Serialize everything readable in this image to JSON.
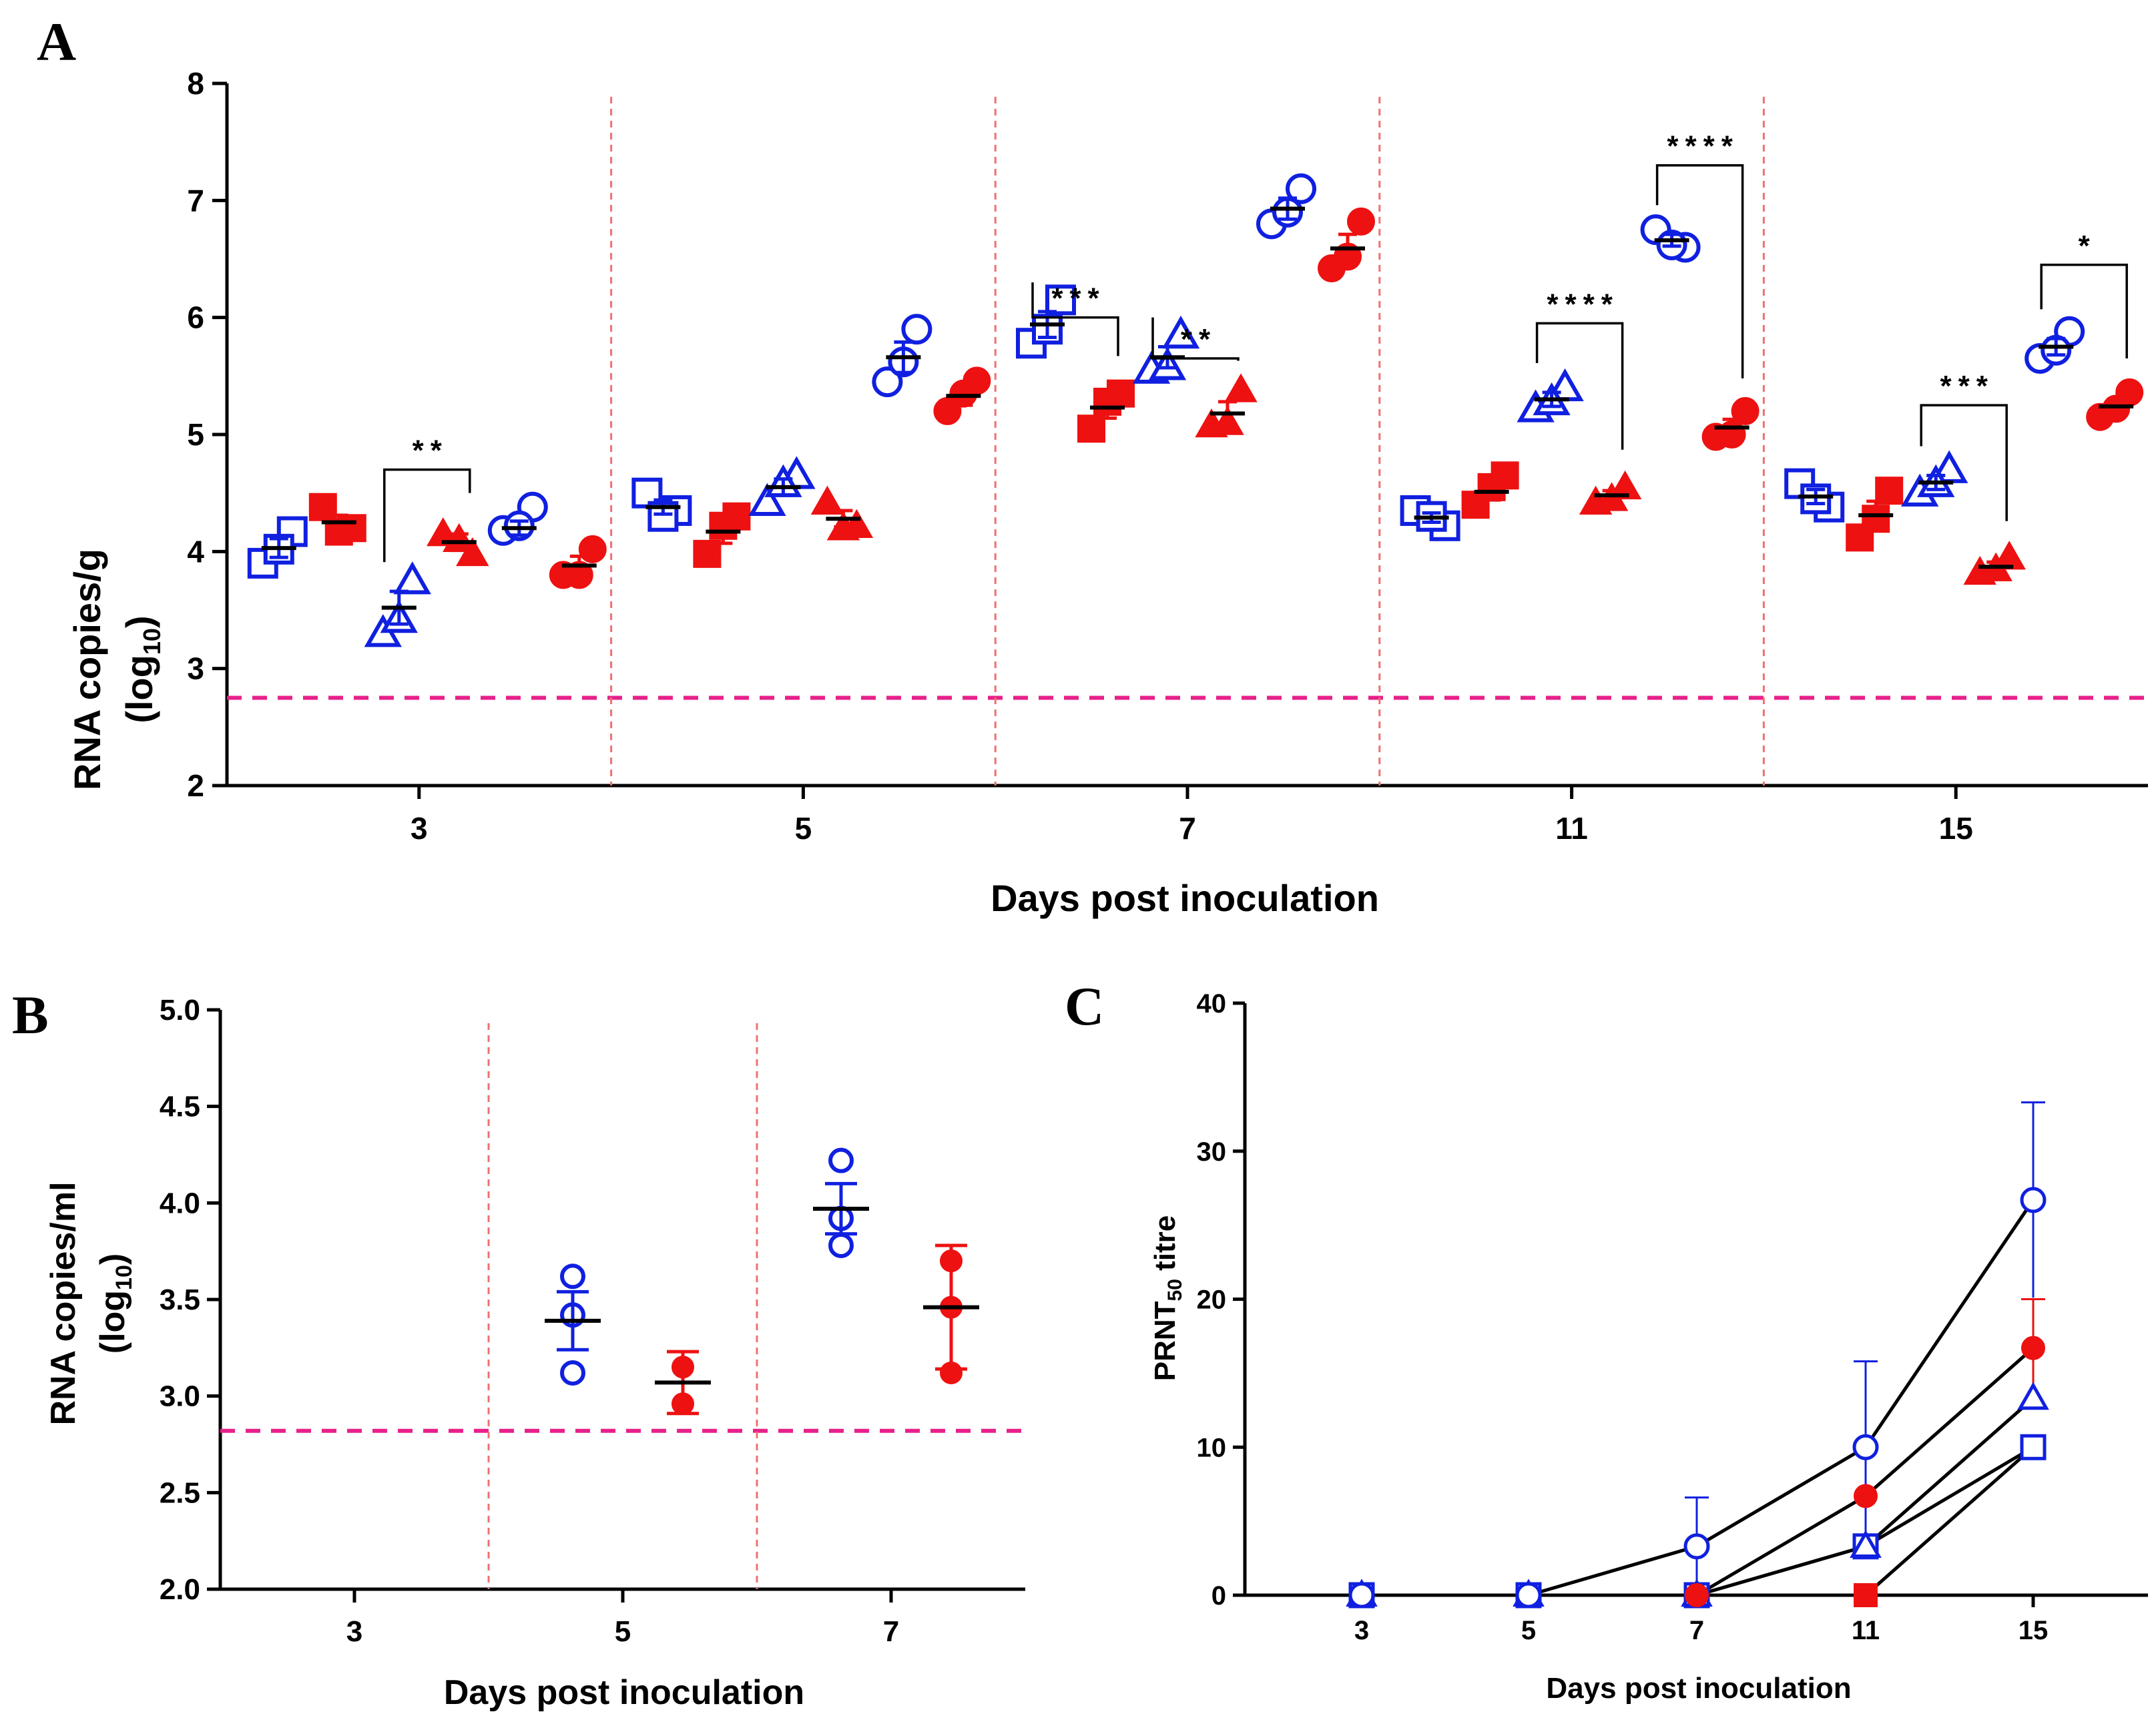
{
  "panels": {
    "a": "A",
    "b": "B",
    "c": "C"
  },
  "colors": {
    "blue": "#1020e0",
    "red": "#ee1111",
    "lod": "#e8208a",
    "divider": "#f07070",
    "black": "#000000"
  },
  "chart_data": [
    {
      "panel": "A",
      "type": "scatter",
      "xlabel": "Days post inoculation",
      "ylabel_main": "RNA copies/g",
      "ylabel_unit": "(log",
      "ylabel_sub": "10",
      "ylabel_close": ")",
      "ylim": [
        2,
        8
      ],
      "yticks": [
        "2",
        "3",
        "4",
        "5",
        "6",
        "7",
        "8"
      ],
      "detection_limit": 2.75,
      "groups": [
        "3",
        "5",
        "7",
        "11",
        "15"
      ],
      "series_markers": [
        "square-open",
        "square-filled",
        "triangle-open",
        "triangle-filled",
        "circle-open",
        "circle-filled"
      ],
      "series_colors": [
        "blue",
        "red",
        "blue",
        "red",
        "blue",
        "red"
      ],
      "points": [
        [
          [
            3.9,
            4.17,
            4.02
          ],
          [
            4.38,
            4.2,
            4.17
          ],
          [
            3.3,
            3.75,
            3.42
          ],
          [
            4.15,
            3.98,
            4.1
          ],
          [
            4.18,
            4.38,
            4.22
          ],
          [
            3.8,
            4.02,
            3.8
          ]
        ],
        [
          [
            4.5,
            4.35,
            4.3
          ],
          [
            3.98,
            4.3,
            4.22
          ],
          [
            4.42,
            4.65,
            4.58
          ],
          [
            4.42,
            4.22,
            4.2
          ],
          [
            5.45,
            5.9,
            5.62
          ],
          [
            5.2,
            5.46,
            5.35
          ]
        ],
        [
          [
            5.78,
            6.15,
            5.9
          ],
          [
            5.05,
            5.35,
            5.28
          ],
          [
            5.55,
            5.85,
            5.58
          ],
          [
            5.08,
            5.38,
            5.1
          ],
          [
            6.8,
            7.1,
            6.9
          ],
          [
            6.42,
            6.82,
            6.52
          ]
        ],
        [
          [
            4.35,
            4.22,
            4.3
          ],
          [
            4.4,
            4.65,
            4.55
          ],
          [
            5.22,
            5.4,
            5.28
          ],
          [
            4.42,
            4.55,
            4.45
          ],
          [
            6.75,
            6.6,
            6.62
          ],
          [
            4.98,
            5.2,
            5.0
          ]
        ],
        [
          [
            4.58,
            4.38,
            4.45
          ],
          [
            4.12,
            4.52,
            4.28
          ],
          [
            4.5,
            4.7,
            4.58
          ],
          [
            3.82,
            3.95,
            3.85
          ],
          [
            5.65,
            5.88,
            5.72
          ],
          [
            5.15,
            5.36,
            5.22
          ]
        ]
      ],
      "means": [
        [
          4.03,
          4.25,
          3.52,
          4.08,
          4.2,
          3.88
        ],
        [
          4.38,
          4.17,
          4.55,
          4.28,
          5.66,
          5.33
        ],
        [
          5.94,
          5.23,
          5.66,
          5.18,
          6.93,
          6.59
        ],
        [
          4.29,
          4.51,
          5.3,
          4.48,
          6.66,
          5.06
        ],
        [
          4.47,
          4.31,
          4.59,
          3.87,
          5.75,
          5.24
        ]
      ],
      "sems": [
        [
          0.08,
          0.06,
          0.14,
          0.07,
          0.06,
          0.08
        ],
        [
          0.06,
          0.1,
          0.07,
          0.07,
          0.13,
          0.08
        ],
        [
          0.11,
          0.09,
          0.09,
          0.1,
          0.09,
          0.12
        ],
        [
          0.04,
          0.07,
          0.06,
          0.04,
          0.05,
          0.07
        ],
        [
          0.06,
          0.12,
          0.06,
          0.04,
          0.07,
          0.06
        ]
      ],
      "significance": [
        {
          "group": 0,
          "from": 2,
          "to": 3,
          "label": "**",
          "top": 4.7
        },
        {
          "group": 2,
          "from": 0,
          "to": 1,
          "label": "***",
          "top": 6.0
        },
        {
          "group": 2,
          "from": 2,
          "to": 3,
          "label": "**",
          "top": 5.65
        },
        {
          "group": 3,
          "from": 2,
          "to": 3,
          "label": "****",
          "top": 5.95
        },
        {
          "group": 3,
          "from": 4,
          "to": 5,
          "label": "****",
          "top": 7.3
        },
        {
          "group": 4,
          "from": 2,
          "to": 3,
          "label": "***",
          "top": 5.25
        },
        {
          "group": 4,
          "from": 4,
          "to": 5,
          "label": "*",
          "top": 6.45
        }
      ]
    },
    {
      "panel": "B",
      "type": "scatter",
      "xlabel": "Days post inoculation",
      "ylabel_main": "RNA copies/ml",
      "ylabel_unit": "(log",
      "ylabel_sub": "10",
      "ylabel_close": ")",
      "ylim": [
        2.0,
        5.0
      ],
      "yticks": [
        "2.0",
        "2.5",
        "3.0",
        "3.5",
        "4.0",
        "4.5",
        "5.0"
      ],
      "detection_limit": 2.82,
      "groups": [
        "3",
        "5",
        "7"
      ],
      "series": [
        {
          "name": "blue-open-circle",
          "color": "blue",
          "marker": "circle-open"
        },
        {
          "name": "red-filled-circle",
          "color": "red",
          "marker": "circle-filled"
        }
      ],
      "points": [
        [
          [],
          []
        ],
        [
          [
            3.12,
            3.62,
            3.42
          ],
          [
            2.96,
            3.15
          ]
        ],
        [
          [
            3.78,
            4.22,
            3.92
          ],
          [
            3.12,
            3.7,
            3.46
          ]
        ]
      ],
      "means": [
        [
          null,
          null
        ],
        [
          3.39,
          3.07
        ],
        [
          3.97,
          3.46
        ]
      ],
      "sems": [
        [
          null,
          null
        ],
        [
          0.15,
          0.16
        ],
        [
          0.13,
          0.32
        ]
      ]
    },
    {
      "panel": "C",
      "type": "line",
      "xlabel": "Days post inoculation",
      "ylabel_main": "PRNT",
      "ylabel_sub": "50",
      "ylabel_rest": " titre",
      "ylim": [
        0,
        40
      ],
      "yticks": [
        "0",
        "10",
        "20",
        "30",
        "40"
      ],
      "x": [
        "3",
        "5",
        "7",
        "11",
        "15"
      ],
      "series": [
        {
          "name": "blue-open-circle",
          "color": "blue",
          "marker": "circle-open",
          "values": [
            0,
            0,
            3.3,
            10,
            26.7
          ],
          "err": [
            0,
            0,
            3.3,
            5.8,
            6.6
          ]
        },
        {
          "name": "red-filled-circle",
          "color": "red",
          "marker": "circle-filled",
          "values": [
            0,
            0,
            0,
            6.7,
            16.7
          ],
          "err": [
            0,
            0,
            0,
            0,
            3.3
          ]
        },
        {
          "name": "blue-open-triangle",
          "color": "blue",
          "marker": "triangle-open",
          "values": [
            0,
            0,
            0,
            3.3,
            13.3
          ],
          "err": [
            0,
            0,
            0,
            0,
            0
          ]
        },
        {
          "name": "blue-open-square",
          "color": "blue",
          "marker": "square-open",
          "values": [
            0,
            0,
            0,
            3.3,
            10
          ],
          "err": [
            0,
            0,
            0,
            0,
            0
          ]
        },
        {
          "name": "red-filled-square",
          "color": "red",
          "marker": "square-filled",
          "values": [
            0,
            0,
            0,
            0,
            10
          ],
          "err": [
            0,
            0,
            0,
            0,
            0
          ]
        }
      ]
    }
  ]
}
